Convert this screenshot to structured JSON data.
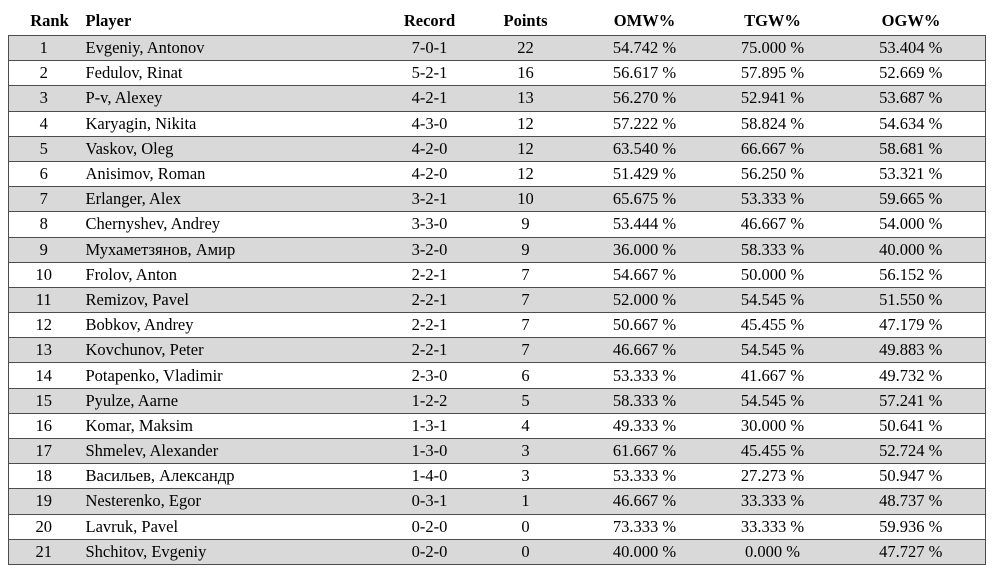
{
  "table": {
    "columns": [
      "Rank",
      "Player",
      "Record",
      "Points",
      "OMW%",
      "TGW%",
      "OGW%"
    ],
    "rows": [
      [
        "1",
        "Evgeniy, Antonov",
        "7-0-1",
        "22",
        "54.742 %",
        "75.000 %",
        "53.404 %"
      ],
      [
        "2",
        "Fedulov, Rinat",
        "5-2-1",
        "16",
        "56.617 %",
        "57.895 %",
        "52.669 %"
      ],
      [
        "3",
        "P-v, Alexey",
        "4-2-1",
        "13",
        "56.270 %",
        "52.941 %",
        "53.687 %"
      ],
      [
        "4",
        "Karyagin, Nikita",
        "4-3-0",
        "12",
        "57.222 %",
        "58.824 %",
        "54.634 %"
      ],
      [
        "5",
        "Vaskov, Oleg",
        "4-2-0",
        "12",
        "63.540 %",
        "66.667 %",
        "58.681 %"
      ],
      [
        "6",
        "Anisimov, Roman",
        "4-2-0",
        "12",
        "51.429 %",
        "56.250 %",
        "53.321 %"
      ],
      [
        "7",
        "Erlanger, Alex",
        "3-2-1",
        "10",
        "65.675 %",
        "53.333 %",
        "59.665 %"
      ],
      [
        "8",
        "Chernyshev, Andrey",
        "3-3-0",
        "9",
        "53.444 %",
        "46.667 %",
        "54.000 %"
      ],
      [
        "9",
        "Мухаметзянов, Амир",
        "3-2-0",
        "9",
        "36.000 %",
        "58.333 %",
        "40.000 %"
      ],
      [
        "10",
        "Frolov, Anton",
        "2-2-1",
        "7",
        "54.667 %",
        "50.000 %",
        "56.152 %"
      ],
      [
        "11",
        "Remizov, Pavel",
        "2-2-1",
        "7",
        "52.000 %",
        "54.545 %",
        "51.550 %"
      ],
      [
        "12",
        "Bobkov, Andrey",
        "2-2-1",
        "7",
        "50.667 %",
        "45.455 %",
        "47.179 %"
      ],
      [
        "13",
        "Kovchunov, Peter",
        "2-2-1",
        "7",
        "46.667 %",
        "54.545 %",
        "49.883 %"
      ],
      [
        "14",
        "Potapenko, Vladimir",
        "2-3-0",
        "6",
        "53.333 %",
        "41.667 %",
        "49.732 %"
      ],
      [
        "15",
        "Pyulze, Aarne",
        "1-2-2",
        "5",
        "58.333 %",
        "54.545 %",
        "57.241 %"
      ],
      [
        "16",
        "Komar, Maksim",
        "1-3-1",
        "4",
        "49.333 %",
        "30.000 %",
        "50.641 %"
      ],
      [
        "17",
        "Shmelev, Alexander",
        "1-3-0",
        "3",
        "61.667 %",
        "45.455 %",
        "52.724 %"
      ],
      [
        "18",
        "Васильев, Александр",
        "1-4-0",
        "3",
        "53.333 %",
        "27.273 %",
        "50.947 %"
      ],
      [
        "19",
        "Nesterenko, Egor",
        "0-3-1",
        "1",
        "46.667 %",
        "33.333 %",
        "48.737 %"
      ],
      [
        "20",
        "Lavruk, Pavel",
        "0-2-0",
        "0",
        "73.333 %",
        "33.333 %",
        "59.936 %"
      ],
      [
        "21",
        "Shchitov, Evgeniy",
        "0-2-0",
        "0",
        "40.000 %",
        "0.000 %",
        "47.727 %"
      ]
    ]
  },
  "colors": {
    "row-alt": "#d9d9d9",
    "border": "#4d4d4d",
    "text": "#000000"
  }
}
